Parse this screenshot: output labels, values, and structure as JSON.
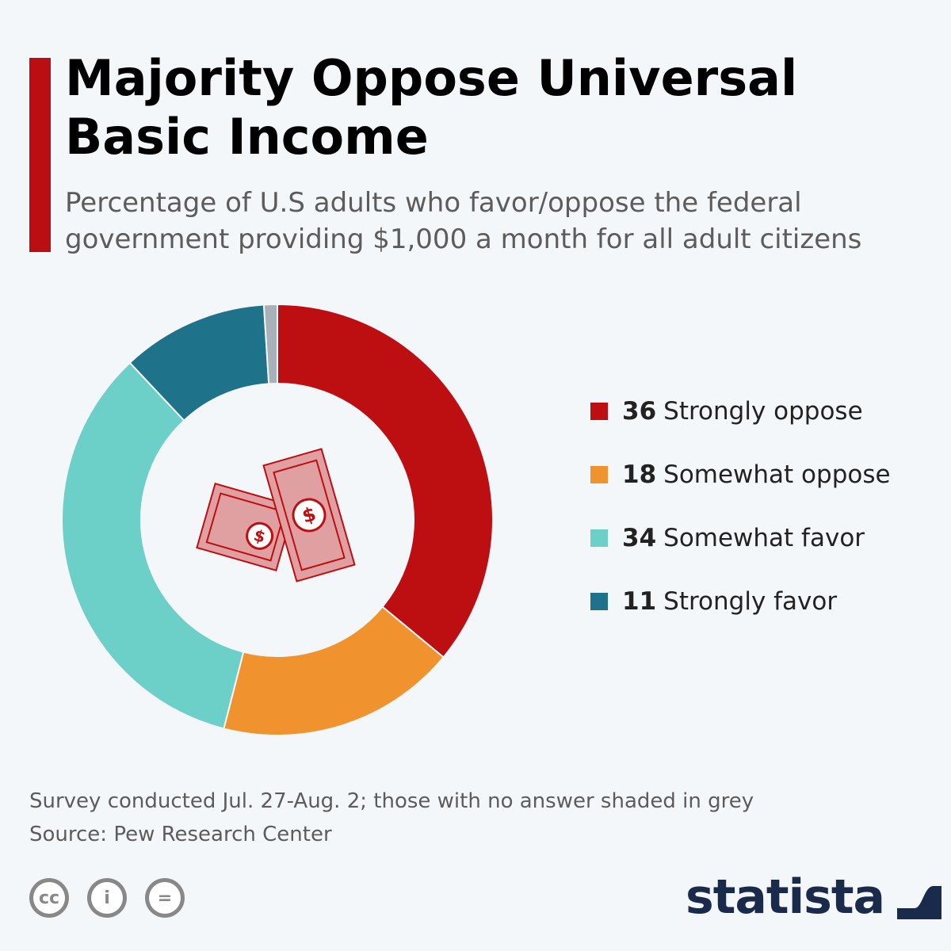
{
  "header": {
    "title": "Majority Oppose Universal Basic Income",
    "subtitle": "Percentage of U.S adults who favor/oppose the federal government providing $1,000 a month for all adult citizens",
    "accent_color": "#b90e12"
  },
  "chart_data": {
    "type": "pie",
    "title": "Majority Oppose Universal Basic Income",
    "subtitle": "Percentage of U.S adults who favor/oppose the federal government providing $1,000 a month for all adult citizens",
    "donut": true,
    "categories": [
      "Strongly oppose",
      "Somewhat oppose",
      "Somewhat favor",
      "Strongly favor"
    ],
    "values": [
      36,
      18,
      34,
      11
    ],
    "colors": [
      "#bd0e12",
      "#f0932e",
      "#6ccfc8",
      "#1e738b"
    ],
    "remainder": {
      "value": 1,
      "color": "#a8b0b8"
    },
    "legend_position": "right",
    "center_icon": "money-bills-icon"
  },
  "footer": {
    "note": "Survey conducted Jul. 27-Aug. 2; those with no answer shaded in grey",
    "source": "Source: Pew Research Center",
    "license_icons": [
      "cc-icon",
      "attribution-icon",
      "no-derivatives-icon"
    ],
    "license_glyphs": [
      "cc",
      "i",
      "="
    ],
    "brand": "statista",
    "brand_color": "#1a2a4a"
  }
}
